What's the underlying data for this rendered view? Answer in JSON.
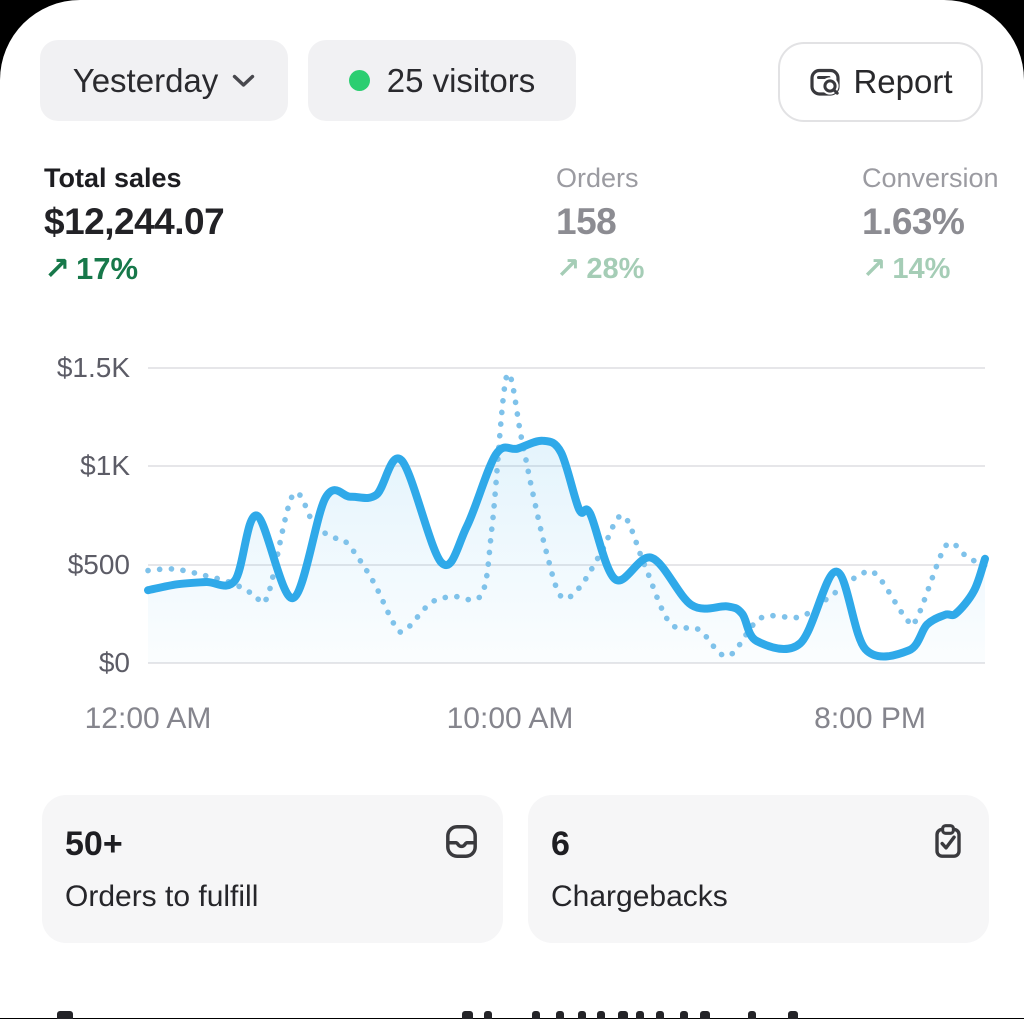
{
  "header": {
    "date_range": {
      "label": "Yesterday"
    },
    "visitors": {
      "label": "25 visitors"
    },
    "report": {
      "label": "Report"
    }
  },
  "metrics": [
    {
      "label": "Total sales",
      "value": "$12,244.07",
      "arrow": "↗",
      "delta": "17%"
    },
    {
      "label": "Orders",
      "value": "158",
      "arrow": "↗",
      "delta": "28%"
    },
    {
      "label": "Conversion",
      "value": "1.63%",
      "arrow": "↗",
      "delta": "14%"
    }
  ],
  "chart_data": {
    "type": "line",
    "unit": "USD",
    "grid": true,
    "legend": "none",
    "xlabel": "",
    "ylabel": "",
    "ylim": [
      0,
      1500
    ],
    "x_range_hours": [
      0,
      23.1
    ],
    "y_ticks": [
      {
        "label": "$1.5K",
        "value": 1500
      },
      {
        "label": "$1K",
        "value": 1000
      },
      {
        "label": "$500",
        "value": 500
      },
      {
        "label": "$0",
        "value": 0
      }
    ],
    "x_ticks": [
      {
        "label": "12:00 AM",
        "hour": 0
      },
      {
        "label": "10:00 AM",
        "hour": 10
      },
      {
        "label": "8:00 PM",
        "hour": 20
      }
    ],
    "series": [
      {
        "name": "current-period-sales",
        "style": "solid",
        "color": "#2FA9E9",
        "fill": "rgba(47,169,233,0.10)",
        "points": [
          [
            0,
            370
          ],
          [
            0.8,
            400
          ],
          [
            1.6,
            412
          ],
          [
            2.4,
            420
          ],
          [
            3,
            750
          ],
          [
            4,
            330
          ],
          [
            4.9,
            840
          ],
          [
            5.6,
            845
          ],
          [
            6.3,
            855
          ],
          [
            7,
            1030
          ],
          [
            8.1,
            510
          ],
          [
            8.8,
            695
          ],
          [
            9.6,
            1060
          ],
          [
            10.2,
            1090
          ],
          [
            10.9,
            1130
          ],
          [
            11.4,
            1070
          ],
          [
            11.9,
            780
          ],
          [
            12.2,
            760
          ],
          [
            12.9,
            425
          ],
          [
            13.9,
            535
          ],
          [
            15,
            295
          ],
          [
            16,
            288
          ],
          [
            16.4,
            250
          ],
          [
            16.8,
            112
          ],
          [
            18,
            100
          ],
          [
            19,
            465
          ],
          [
            19.8,
            70
          ],
          [
            21,
            64
          ],
          [
            21.5,
            195
          ],
          [
            22,
            245
          ],
          [
            22.3,
            252
          ],
          [
            22.8,
            368
          ],
          [
            23.1,
            530
          ]
        ]
      },
      {
        "name": "previous-period-sales",
        "style": "dotted",
        "color": "#7FC2EA",
        "points": [
          [
            0,
            470
          ],
          [
            0.7,
            478
          ],
          [
            1.5,
            448
          ],
          [
            2.3,
            408
          ],
          [
            2.9,
            352
          ],
          [
            3.3,
            340
          ],
          [
            4,
            855
          ],
          [
            4.6,
            700
          ],
          [
            5.1,
            640
          ],
          [
            5.5,
            608
          ],
          [
            6.2,
            420
          ],
          [
            6.8,
            195
          ],
          [
            7.1,
            168
          ],
          [
            7.8,
            305
          ],
          [
            8.4,
            338
          ],
          [
            9.2,
            348
          ],
          [
            9.5,
            700
          ],
          [
            9.9,
            1460
          ],
          [
            10.3,
            1150
          ],
          [
            10.6,
            880
          ],
          [
            11,
            560
          ],
          [
            11.4,
            338
          ],
          [
            11.9,
            382
          ],
          [
            12.5,
            560
          ],
          [
            13.1,
            750
          ],
          [
            13.7,
            500
          ],
          [
            14.4,
            205
          ],
          [
            15.2,
            170
          ],
          [
            16,
            35
          ],
          [
            16.9,
            228
          ],
          [
            18,
            235
          ],
          [
            18.8,
            335
          ],
          [
            19.6,
            443
          ],
          [
            20.1,
            450
          ],
          [
            20.9,
            232
          ],
          [
            21.2,
            220
          ],
          [
            21.9,
            555
          ],
          [
            22.2,
            608
          ],
          [
            22.6,
            540
          ],
          [
            23.1,
            495
          ]
        ]
      }
    ]
  },
  "cards": [
    {
      "value": "50+",
      "label": "Orders to fulfill",
      "icon": "inbox-icon"
    },
    {
      "value": "6",
      "label": "Chargebacks",
      "icon": "clipboard-check-icon"
    }
  ],
  "colors": {
    "accent_blue": "#2FA9E9",
    "dotted_blue": "#7FC2EA",
    "delta_green_dark": "#17784A",
    "delta_green_light": "#A5CDB6",
    "live_dot_green": "#2BCE71",
    "pill_bg": "#F1F1F3",
    "card_bg": "#F6F6F7",
    "gridline": "#E6E6E9"
  }
}
